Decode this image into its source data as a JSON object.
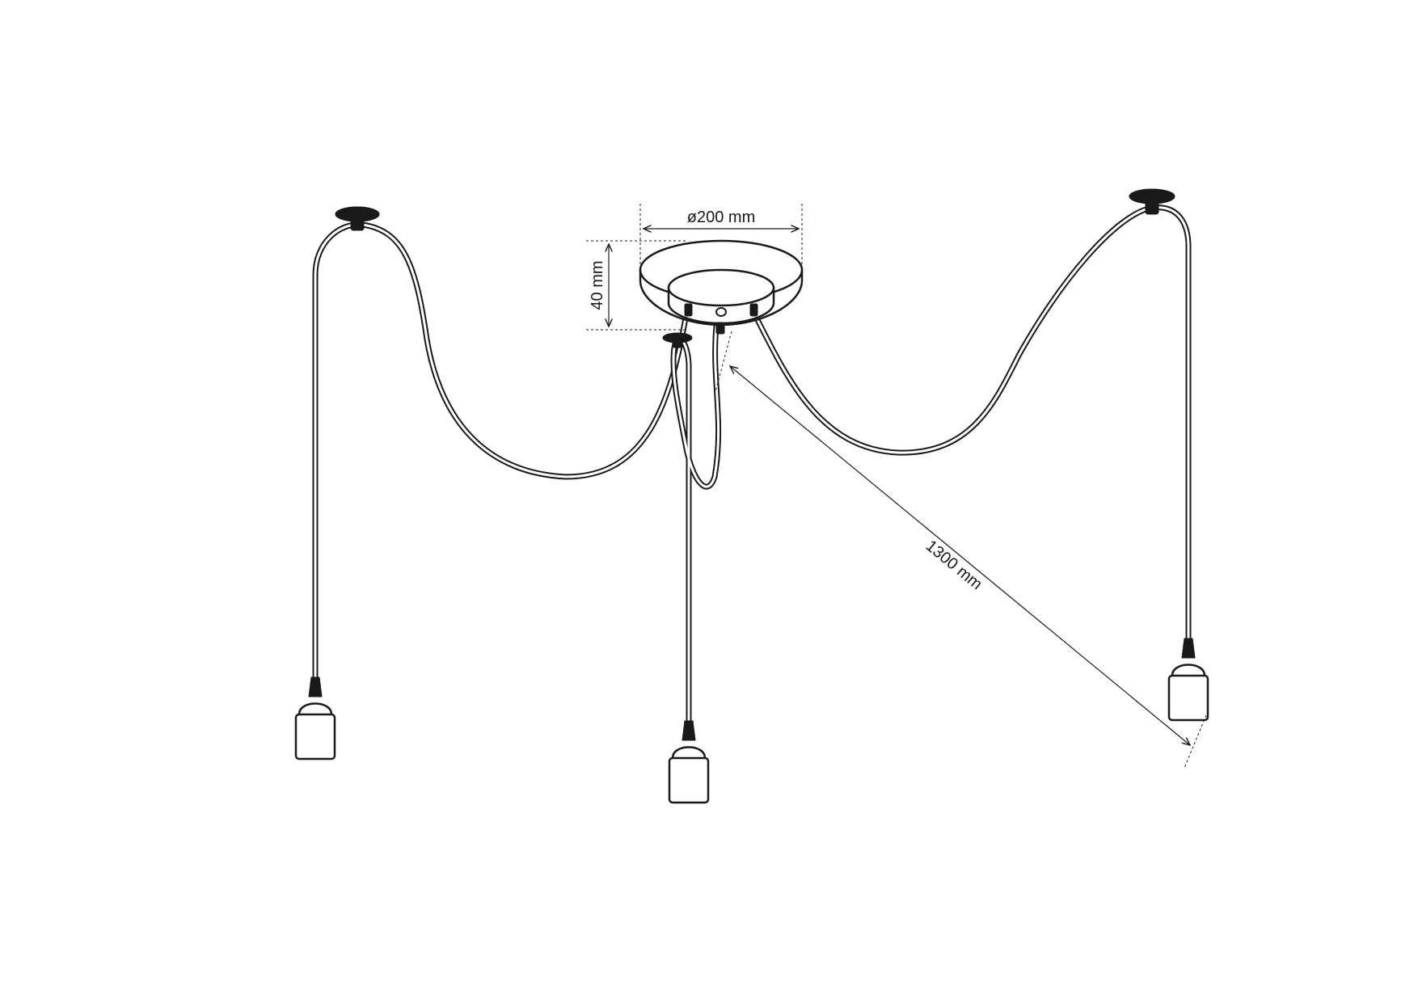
{
  "diagram": {
    "dimensions": {
      "diameter": "ø200 mm",
      "height": "40 mm",
      "cable_length": "1300 mm"
    },
    "line_color": "#1a1a1a",
    "background": "#ffffff",
    "pendant_count": 3
  }
}
